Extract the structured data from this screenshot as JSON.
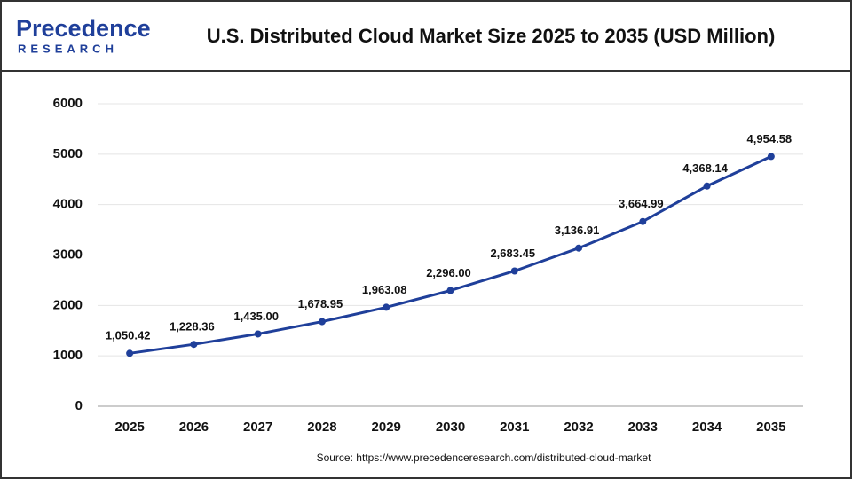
{
  "logo": {
    "name": "Precedence",
    "sub": "RESEARCH"
  },
  "chart_data": {
    "type": "line",
    "title": "U.S. Distributed Cloud Market Size 2025 to 2035  (USD Million)",
    "categories": [
      "2025",
      "2026",
      "2027",
      "2028",
      "2029",
      "2030",
      "2031",
      "2032",
      "2033",
      "2034",
      "2035"
    ],
    "values": [
      1050.42,
      1228.36,
      1435.0,
      1678.95,
      1963.08,
      2296.0,
      2683.45,
      3136.91,
      3664.99,
      4368.14,
      4954.58
    ],
    "value_labels": [
      "1,050.42",
      "1,228.36",
      "1,435.00",
      "1,678.95",
      "1,963.08",
      "2,296.00",
      "2,683.45",
      "3,136.91",
      "3,664.99",
      "4,368.14",
      "4,954.58"
    ],
    "color": "#1f3f9a",
    "ylim": [
      0,
      6000
    ],
    "yticks": [
      0,
      1000,
      2000,
      3000,
      4000,
      5000,
      6000
    ],
    "grid": true,
    "source": "Source: https://www.precedenceresearch.com/distributed-cloud-market"
  }
}
